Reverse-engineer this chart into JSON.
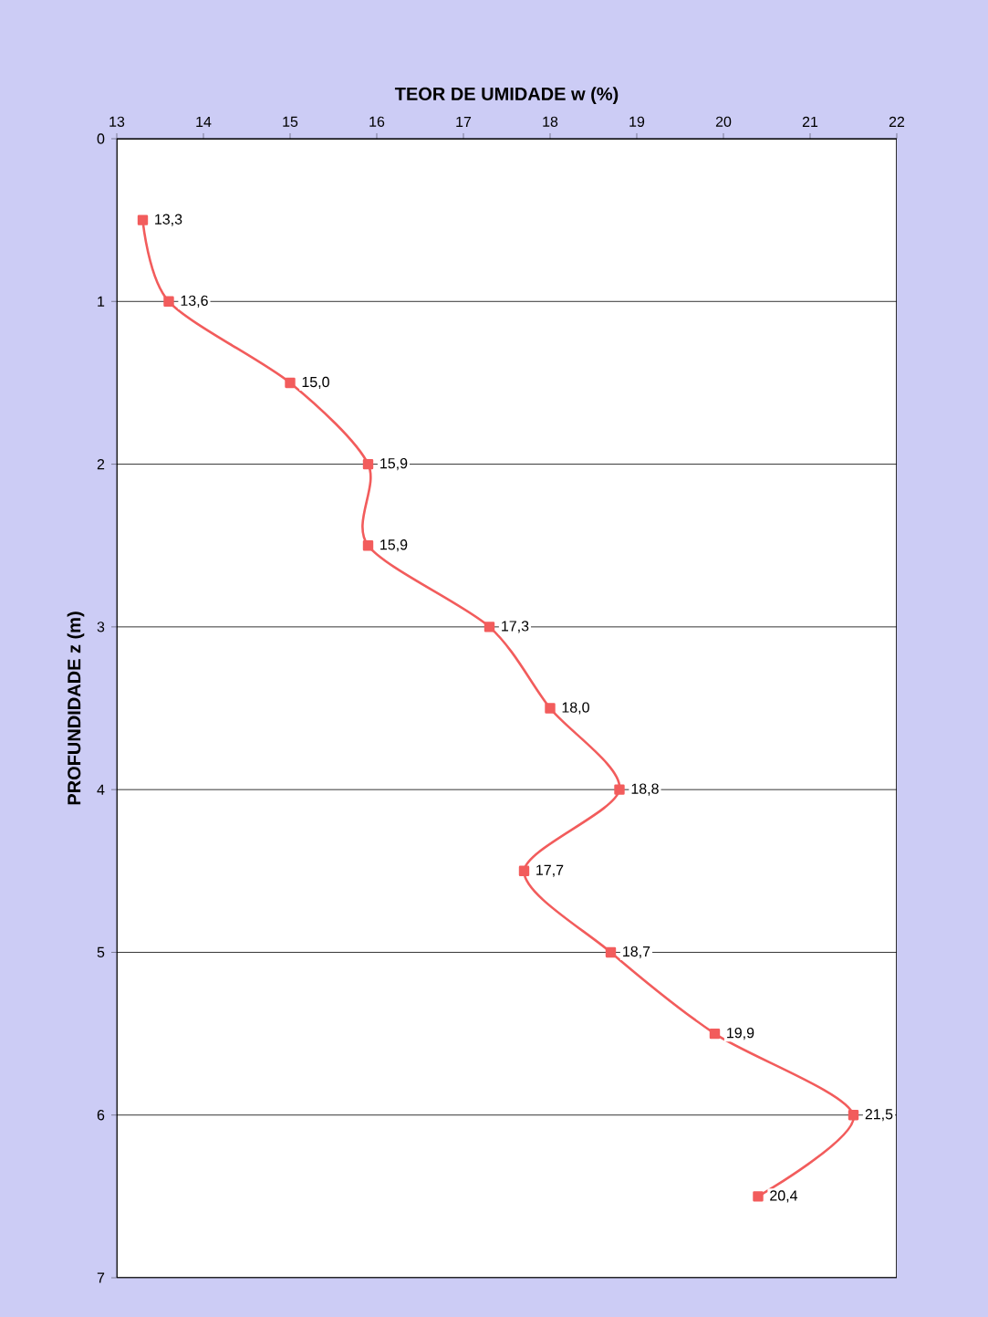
{
  "chart_data": {
    "type": "line",
    "xlabel": "TEOR DE UMIDADE  w (%)",
    "ylabel": "PROFUNDIDADE  z (m)",
    "x": [
      13.3,
      13.6,
      15.0,
      15.9,
      15.9,
      17.3,
      18.0,
      18.8,
      17.7,
      18.7,
      19.9,
      21.5,
      20.4
    ],
    "values": [
      0.5,
      1,
      1.5,
      2,
      2.5,
      3,
      3.5,
      4,
      4.5,
      5,
      5.5,
      6,
      6.5
    ],
    "annotations": [
      {
        "text": "13,3",
        "x": 13.3,
        "y": 0.5
      },
      {
        "text": "13,6",
        "x": 13.6,
        "y": 1
      },
      {
        "text": "15,0",
        "x": 15.0,
        "y": 1.5
      },
      {
        "text": "15,9",
        "x": 15.9,
        "y": 2
      },
      {
        "text": "15,9",
        "x": 15.9,
        "y": 2.5
      },
      {
        "text": "17,3",
        "x": 17.3,
        "y": 3
      },
      {
        "text": "18,0",
        "x": 18.0,
        "y": 3.5
      },
      {
        "text": "18,8",
        "x": 18.8,
        "y": 4
      },
      {
        "text": "17,7",
        "x": 17.7,
        "y": 4.5
      },
      {
        "text": "18,7",
        "x": 18.7,
        "y": 5
      },
      {
        "text": "19,9",
        "x": 19.9,
        "y": 5.5
      },
      {
        "text": "21,5",
        "x": 21.5,
        "y": 6
      },
      {
        "text": "20,4",
        "x": 20.4,
        "y": 6.5
      }
    ],
    "color": "#f25c5c",
    "marker": "square",
    "line_style": "solid",
    "grid": "y",
    "xlim": [
      13,
      22
    ],
    "xticks": [
      13,
      14,
      15,
      16,
      17,
      18,
      19,
      20,
      21,
      22
    ],
    "ylim": [
      7,
      0
    ],
    "yticks": [
      0,
      1,
      2,
      3,
      4,
      5,
      6,
      7
    ]
  }
}
